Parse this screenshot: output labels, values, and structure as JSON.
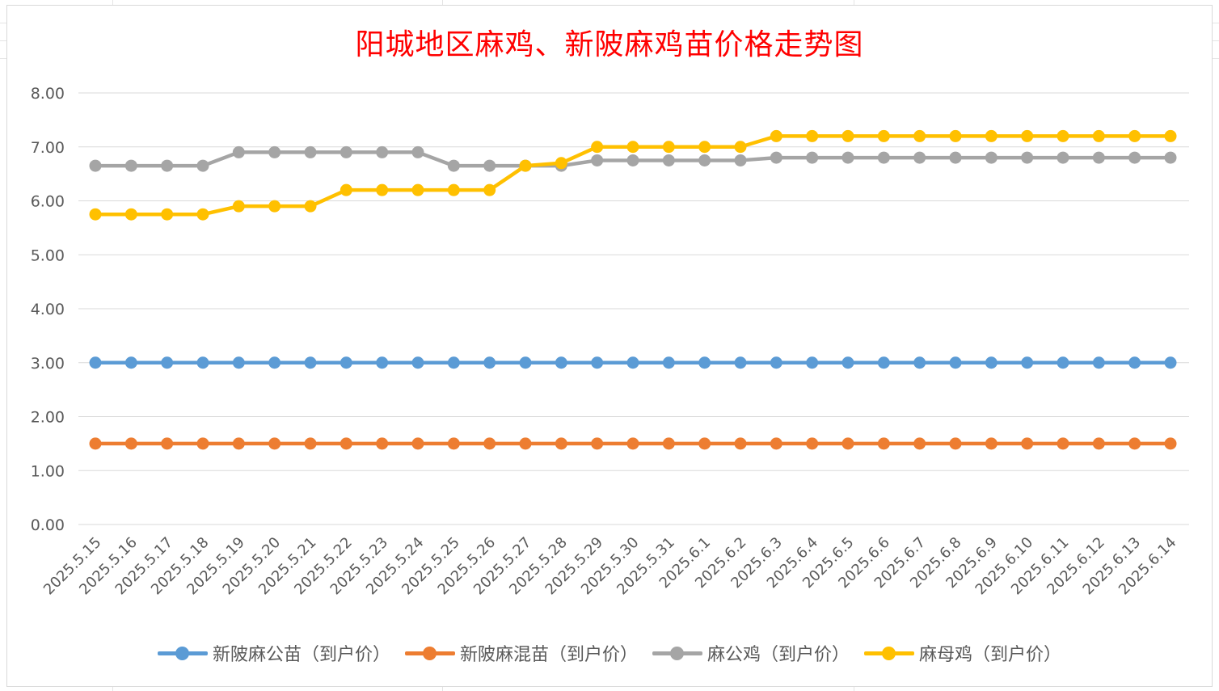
{
  "chart_data": {
    "type": "line",
    "title": "阳城地区麻鸡、新陂麻鸡苗价格走势图",
    "xlabel": "",
    "ylabel": "",
    "ylim": [
      0,
      8
    ],
    "yticks": [
      "0.00",
      "1.00",
      "2.00",
      "3.00",
      "4.00",
      "5.00",
      "6.00",
      "7.00",
      "8.00"
    ],
    "grid": true,
    "legend_position": "bottom",
    "x": [
      "2025.5.15",
      "2025.5.16",
      "2025.5.17",
      "2025.5.18",
      "2025.5.19",
      "2025.5.20",
      "2025.5.21",
      "2025.5.22",
      "2025.5.23",
      "2025.5.24",
      "2025.5.25",
      "2025.5.26",
      "2025.5.27",
      "2025.5.28",
      "2025.5.29",
      "2025.5.30",
      "2025.5.31",
      "2025.6.1",
      "2025.6.2",
      "2025.6.3",
      "2025.6.4",
      "2025.6.5",
      "2025.6.6",
      "2025.6.7",
      "2025.6.8",
      "2025.6.9",
      "2025.6.10",
      "2025.6.11",
      "2025.6.12",
      "2025.6.13",
      "2025.6.14"
    ],
    "series": [
      {
        "name": "新陂麻公苗（到户价）",
        "color": "#5b9bd5",
        "values": [
          3.0,
          3.0,
          3.0,
          3.0,
          3.0,
          3.0,
          3.0,
          3.0,
          3.0,
          3.0,
          3.0,
          3.0,
          3.0,
          3.0,
          3.0,
          3.0,
          3.0,
          3.0,
          3.0,
          3.0,
          3.0,
          3.0,
          3.0,
          3.0,
          3.0,
          3.0,
          3.0,
          3.0,
          3.0,
          3.0,
          3.0
        ]
      },
      {
        "name": "新陂麻混苗（到户价）",
        "color": "#ed7d31",
        "values": [
          1.5,
          1.5,
          1.5,
          1.5,
          1.5,
          1.5,
          1.5,
          1.5,
          1.5,
          1.5,
          1.5,
          1.5,
          1.5,
          1.5,
          1.5,
          1.5,
          1.5,
          1.5,
          1.5,
          1.5,
          1.5,
          1.5,
          1.5,
          1.5,
          1.5,
          1.5,
          1.5,
          1.5,
          1.5,
          1.5,
          1.5
        ]
      },
      {
        "name": "麻公鸡（到户价）",
        "color": "#a5a5a5",
        "values": [
          6.65,
          6.65,
          6.65,
          6.65,
          6.9,
          6.9,
          6.9,
          6.9,
          6.9,
          6.9,
          6.65,
          6.65,
          6.65,
          6.65,
          6.75,
          6.75,
          6.75,
          6.75,
          6.75,
          6.8,
          6.8,
          6.8,
          6.8,
          6.8,
          6.8,
          6.8,
          6.8,
          6.8,
          6.8,
          6.8,
          6.8
        ]
      },
      {
        "name": "麻母鸡（到户价）",
        "color": "#ffc000",
        "values": [
          5.75,
          5.75,
          5.75,
          5.75,
          5.9,
          5.9,
          5.9,
          6.2,
          6.2,
          6.2,
          6.2,
          6.2,
          6.65,
          6.7,
          7.0,
          7.0,
          7.0,
          7.0,
          7.0,
          7.2,
          7.2,
          7.2,
          7.2,
          7.2,
          7.2,
          7.2,
          7.2,
          7.2,
          7.2,
          7.2,
          7.2
        ]
      }
    ]
  }
}
